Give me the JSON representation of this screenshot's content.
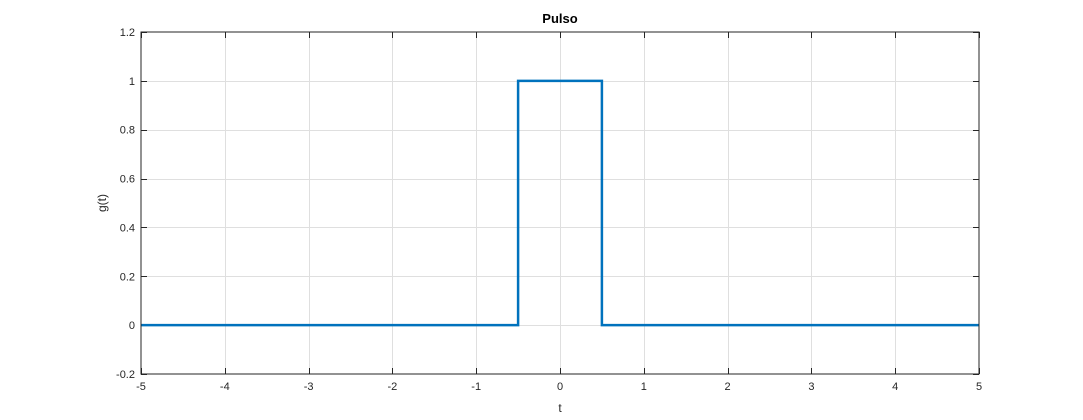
{
  "chart_data": {
    "type": "line",
    "title": "Pulso",
    "xlabel": "t",
    "ylabel": "g(t)",
    "xlim": [
      -5,
      5
    ],
    "ylim": [
      -0.2,
      1.2
    ],
    "xticks": [
      -5,
      -4,
      -3,
      -2,
      -1,
      0,
      1,
      2,
      3,
      4,
      5
    ],
    "yticks": [
      -0.2,
      0,
      0.2,
      0.4,
      0.6,
      0.8,
      1,
      1.2
    ],
    "grid": true,
    "series": [
      {
        "x": [
          -5,
          -0.5,
          -0.5,
          0.5,
          0.5,
          5
        ],
        "y": [
          0,
          0,
          1,
          1,
          0,
          0
        ],
        "color": "#0072BD"
      }
    ]
  }
}
